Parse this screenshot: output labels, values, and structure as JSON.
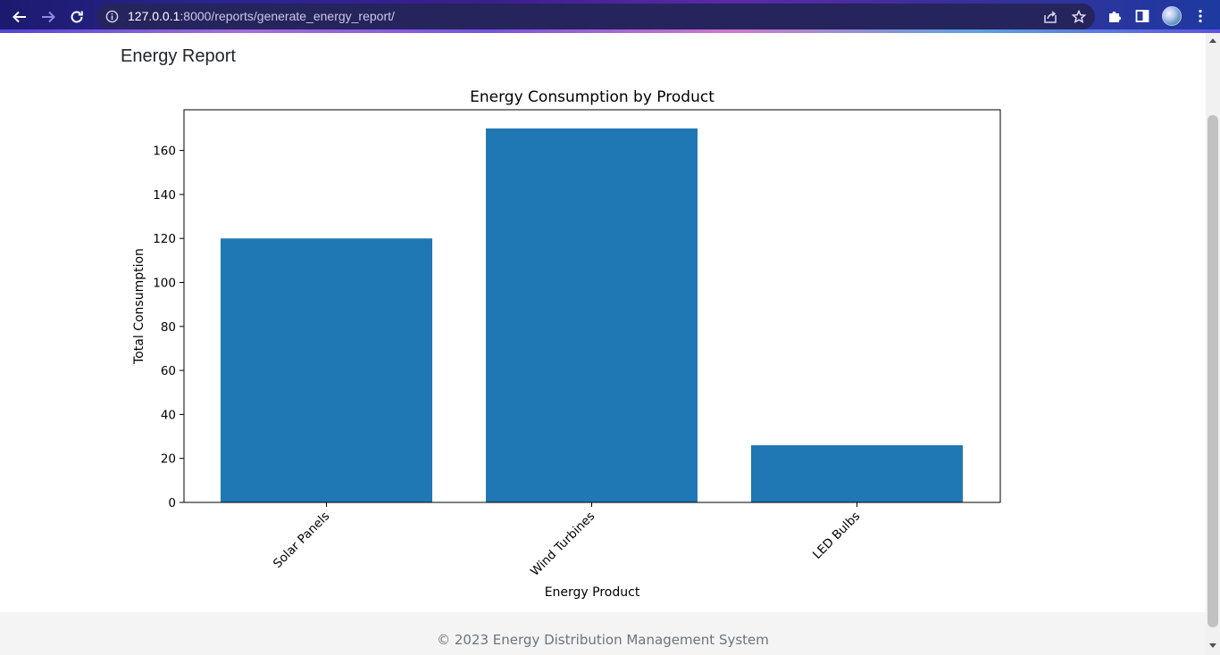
{
  "browser": {
    "url_host": "127.0.0.1",
    "url_rest": ":8000/reports/generate_energy_report/",
    "icons": {
      "back": "arrow-left-icon",
      "forward": "arrow-right-icon",
      "reload": "reload-icon",
      "info": "info-icon",
      "share": "share-icon",
      "bookmark": "star-icon",
      "extensions": "puzzle-icon",
      "sidepanel": "side-panel-icon",
      "menu": "kebab-menu-icon"
    }
  },
  "page": {
    "heading": "Energy Report"
  },
  "chart_data": {
    "type": "bar",
    "title": "Energy Consumption by Product",
    "xlabel": "Energy Product",
    "ylabel": "Total Consumption",
    "categories": [
      "Solar Panels",
      "Wind Turbines",
      "LED Bulbs"
    ],
    "values": [
      120,
      170,
      26
    ],
    "ylim": [
      0,
      178.5
    ],
    "yticks": [
      0,
      20,
      40,
      60,
      80,
      100,
      120,
      140,
      160
    ],
    "bar_color": "#1f77b4",
    "grid": false,
    "legend": "none"
  },
  "footer": {
    "text": "© 2023 Energy Distribution Management System"
  }
}
